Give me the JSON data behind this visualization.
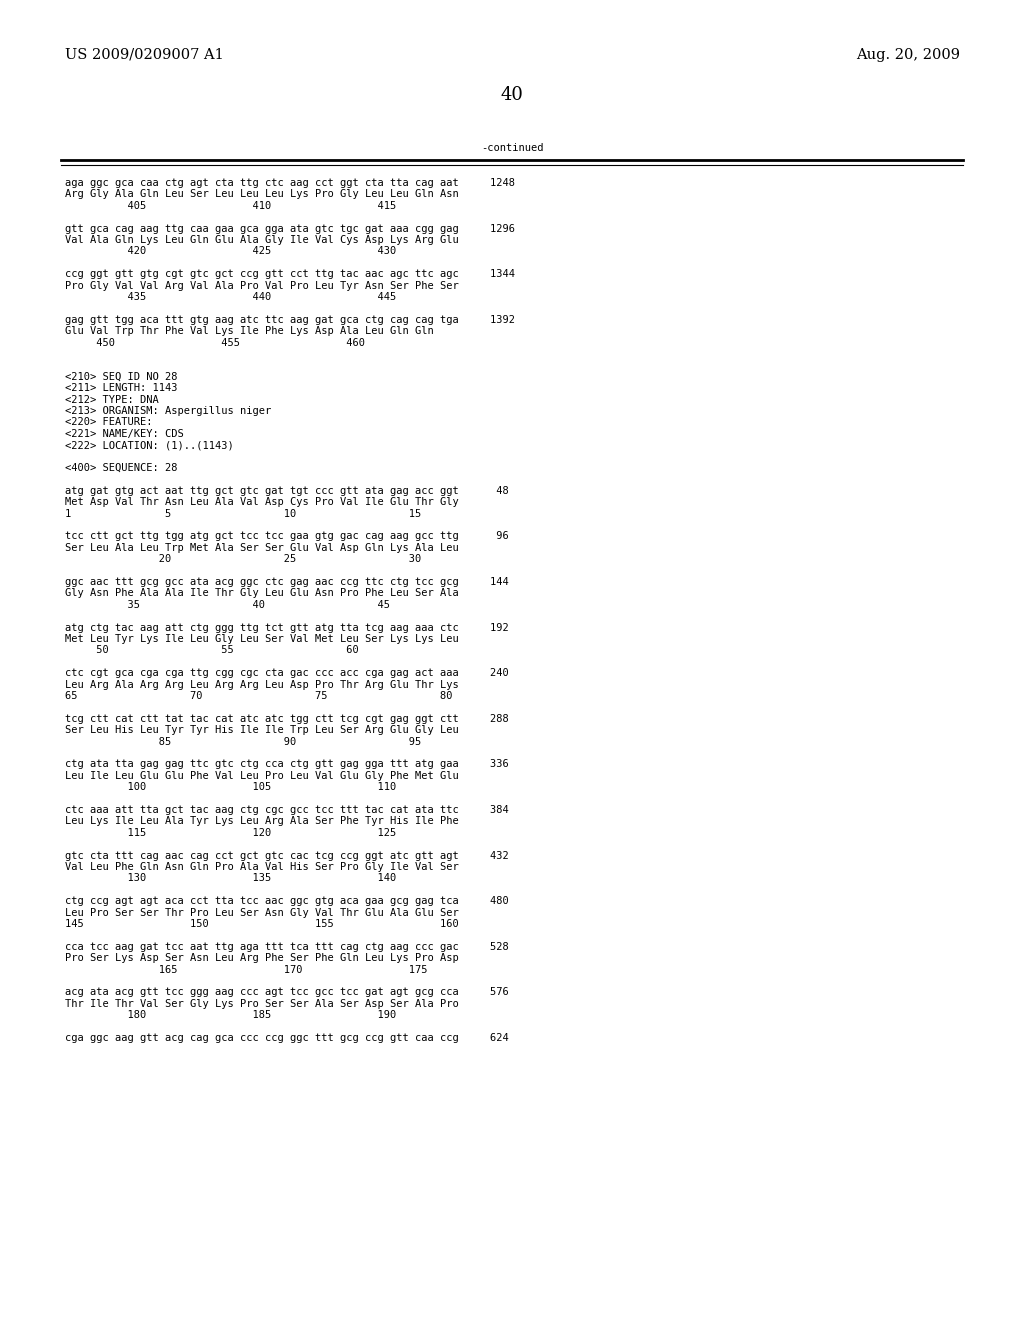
{
  "header_left": "US 2009/0209007 A1",
  "header_right": "Aug. 20, 2009",
  "page_number": "40",
  "continued_label": "-continued",
  "background_color": "#ffffff",
  "text_color": "#000000",
  "font_size_header": 10.5,
  "font_size_body": 7.5,
  "font_size_page": 13,
  "content_lines": [
    "aga ggc gca caa ctg agt cta ttg ctc aag cct ggt cta tta cag aat     1248",
    "Arg Gly Ala Gln Leu Ser Leu Leu Leu Lys Pro Gly Leu Leu Gln Asn",
    "          405                 410                 415",
    "",
    "gtt gca cag aag ttg caa gaa gca gga ata gtc tgc gat aaa cgg gag     1296",
    "Val Ala Gln Lys Leu Gln Glu Ala Gly Ile Val Cys Asp Lys Arg Glu",
    "          420                 425                 430",
    "",
    "ccg ggt gtt gtg cgt gtc gct ccg gtt cct ttg tac aac agc ttc agc     1344",
    "Pro Gly Val Val Arg Val Ala Pro Val Pro Leu Tyr Asn Ser Phe Ser",
    "          435                 440                 445",
    "",
    "gag gtt tgg aca ttt gtg aag atc ttc aag gat gca ctg cag cag tga     1392",
    "Glu Val Trp Thr Phe Val Lys Ile Phe Lys Asp Ala Leu Gln Gln",
    "     450                 455                 460",
    "",
    "",
    "<210> SEQ ID NO 28",
    "<211> LENGTH: 1143",
    "<212> TYPE: DNA",
    "<213> ORGANISM: Aspergillus niger",
    "<220> FEATURE:",
    "<221> NAME/KEY: CDS",
    "<222> LOCATION: (1)..(1143)",
    "",
    "<400> SEQUENCE: 28",
    "",
    "atg gat gtg act aat ttg gct gtc gat tgt ccc gtt ata gag acc ggt      48",
    "Met Asp Val Thr Asn Leu Ala Val Asp Cys Pro Val Ile Glu Thr Gly",
    "1               5                  10                  15",
    "",
    "tcc ctt gct ttg tgg atg gct tcc tcc gaa gtg gac cag aag gcc ttg      96",
    "Ser Leu Ala Leu Trp Met Ala Ser Ser Glu Val Asp Gln Lys Ala Leu",
    "               20                  25                  30",
    "",
    "ggc aac ttt gcg gcc ata acg ggc ctc gag aac ccg ttc ctg tcc gcg     144",
    "Gly Asn Phe Ala Ala Ile Thr Gly Leu Glu Asn Pro Phe Leu Ser Ala",
    "          35                  40                  45",
    "",
    "atg ctg tac aag att ctg ggg ttg tct gtt atg tta tcg aag aaa ctc     192",
    "Met Leu Tyr Lys Ile Leu Gly Leu Ser Val Met Leu Ser Lys Lys Leu",
    "     50                  55                  60",
    "",
    "ctc cgt gca cga cga ttg cgg cgc cta gac ccc acc cga gag act aaa     240",
    "Leu Arg Ala Arg Arg Leu Arg Arg Leu Asp Pro Thr Arg Glu Thr Lys",
    "65                  70                  75                  80",
    "",
    "tcg ctt cat ctt tat tac cat atc atc tgg ctt tcg cgt gag ggt ctt     288",
    "Ser Leu His Leu Tyr Tyr His Ile Ile Trp Leu Ser Arg Glu Gly Leu",
    "               85                  90                  95",
    "",
    "ctg ata tta gag gag ttc gtc ctg cca ctg gtt gag gga ttt atg gaa     336",
    "Leu Ile Leu Glu Glu Phe Val Leu Pro Leu Val Glu Gly Phe Met Glu",
    "          100                 105                 110",
    "",
    "ctc aaa att tta gct tac aag ctg cgc gcc tcc ttt tac cat ata ttc     384",
    "Leu Lys Ile Leu Ala Tyr Lys Leu Arg Ala Ser Phe Tyr His Ile Phe",
    "          115                 120                 125",
    "",
    "gtc cta ttt cag aac cag cct gct gtc cac tcg ccg ggt atc gtt agt     432",
    "Val Leu Phe Gln Asn Gln Pro Ala Val His Ser Pro Gly Ile Val Ser",
    "          130                 135                 140",
    "",
    "ctg ccg agt agt aca cct tta tcc aac ggc gtg aca gaa gcg gag tca     480",
    "Leu Pro Ser Ser Thr Pro Leu Ser Asn Gly Val Thr Glu Ala Glu Ser",
    "145                 150                 155                 160",
    "",
    "cca tcc aag gat tcc aat ttg aga ttt tca ttt cag ctg aag ccc gac     528",
    "Pro Ser Lys Asp Ser Asn Leu Arg Phe Ser Phe Gln Leu Lys Pro Asp",
    "               165                 170                 175",
    "",
    "acg ata acg gtt tcc ggg aag ccc agt tcc gcc tcc gat agt gcg cca     576",
    "Thr Ile Thr Val Ser Gly Lys Pro Ser Ser Ala Ser Asp Ser Ala Pro",
    "          180                 185                 190",
    "",
    "cga ggc aag gtt acg cag gca ccc ccg ggc ttt gcg ccg gtt caa ccg     624"
  ]
}
